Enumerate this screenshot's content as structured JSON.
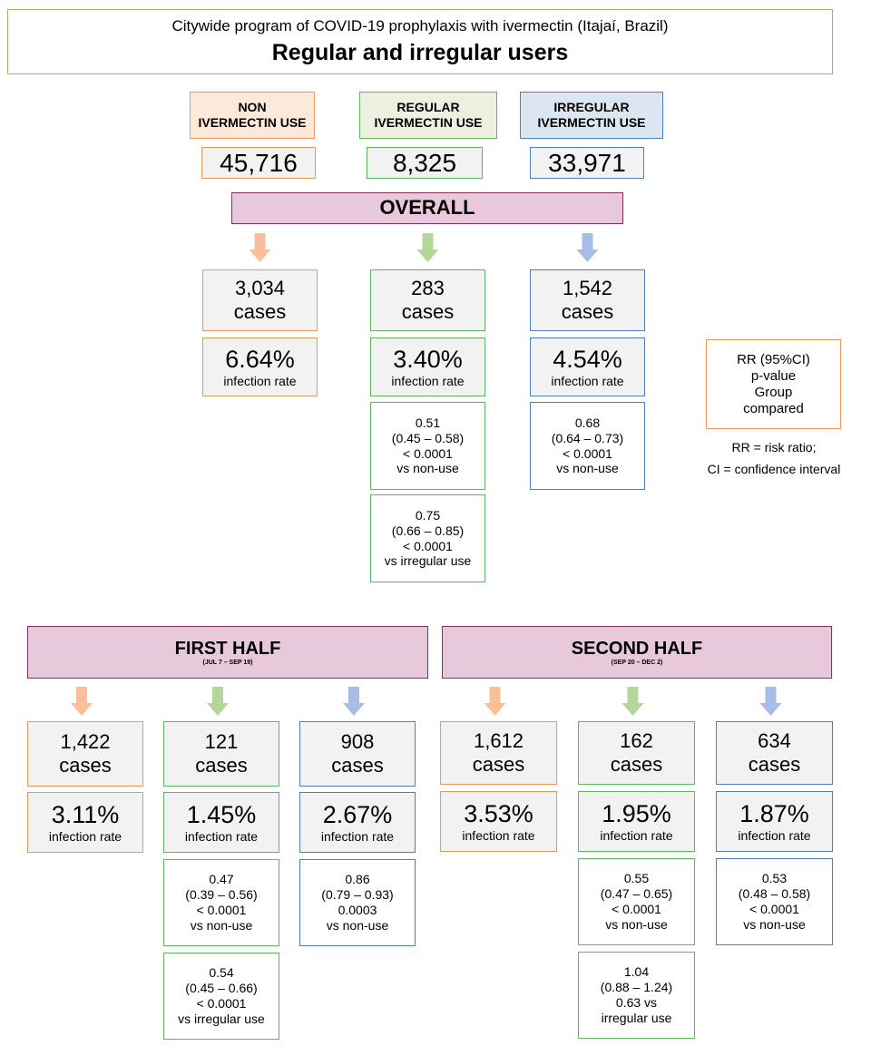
{
  "header": {
    "subtitle": "Citywide program of COVID-19 prophylaxis with ivermectin  (Itajaí, Brazil)",
    "title": "Regular and irregular users"
  },
  "groups": [
    {
      "label": [
        "NON",
        "IVERMECTIN USE"
      ],
      "count": "45,716"
    },
    {
      "label": [
        "REGULAR",
        "IVERMECTIN USE"
      ],
      "count": "8,325"
    },
    {
      "label": [
        "IRREGULAR",
        "IVERMECTIN USE"
      ],
      "count": "33,971"
    }
  ],
  "periods": [
    {
      "title": "OVERALL",
      "columns": [
        {
          "cases": "3,034",
          "cases_label": "cases",
          "rate": "6.64%",
          "rate_label": "infection rate",
          "comparisons": []
        },
        {
          "cases": "283",
          "cases_label": "cases",
          "rate": "3.40%",
          "rate_label": "infection rate",
          "comparisons": [
            [
              "0.51",
              "(0.45 – 0.58)",
              "< 0.0001",
              "vs non-use"
            ],
            [
              "0.75",
              "(0.66  – 0.85)",
              "< 0.0001",
              "vs irregular use"
            ]
          ]
        },
        {
          "cases": "1,542",
          "cases_label": "cases",
          "rate": "4.54%",
          "rate_label": "infection rate",
          "comparisons": [
            [
              "0.68",
              "(0.64 – 0.73)",
              "< 0.0001",
              "vs non-use"
            ]
          ]
        }
      ]
    },
    {
      "title": "FIRST HALF",
      "range": "(JUL 7 – SEP 19)",
      "columns": [
        {
          "cases": "1,422",
          "cases_label": "cases",
          "rate": "3.11%",
          "rate_label": "infection rate",
          "comparisons": []
        },
        {
          "cases": "121",
          "cases_label": "cases",
          "rate": "1.45%",
          "rate_label": "infection rate",
          "comparisons": [
            [
              "0.47",
              "(0.39 – 0.56)",
              "< 0.0001",
              "vs non-use"
            ],
            [
              "0.54",
              "(0.45  – 0.66)",
              "< 0.0001",
              "vs irregular use"
            ]
          ]
        },
        {
          "cases": "908",
          "cases_label": "cases",
          "rate": "2.67%",
          "rate_label": "infection rate",
          "comparisons": [
            [
              "0.86",
              "(0.79 – 0.93)",
              "0.0003",
              "vs non-use"
            ]
          ]
        }
      ]
    },
    {
      "title": "SECOND  HALF",
      "range": "(SEP 20 – DEC 2)",
      "columns": [
        {
          "cases": "1,612",
          "cases_label": "cases",
          "rate": "3.53%",
          "rate_label": "infection rate",
          "comparisons": []
        },
        {
          "cases": "162",
          "cases_label": "cases",
          "rate": "1.95%",
          "rate_label": "infection rate",
          "comparisons": [
            [
              "0.55",
              "(0.47 – 0.65)",
              "< 0.0001",
              "vs non-use"
            ],
            [
              "1.04",
              "(0.88  – 1.24)",
              "0.63 vs",
              "irregular use"
            ]
          ]
        },
        {
          "cases": "634",
          "cases_label": "cases",
          "rate": "1.87%",
          "rate_label": "infection rate",
          "comparisons": [
            [
              "0.53",
              "(0.48 – 0.58)",
              "< 0.0001",
              "vs non-use"
            ]
          ]
        }
      ]
    }
  ],
  "legend": {
    "box": [
      "RR (95%CI)",
      "p-value",
      "Group",
      "compared"
    ],
    "notes": [
      "RR = risk ratio;",
      "CI = confidence interval"
    ]
  }
}
